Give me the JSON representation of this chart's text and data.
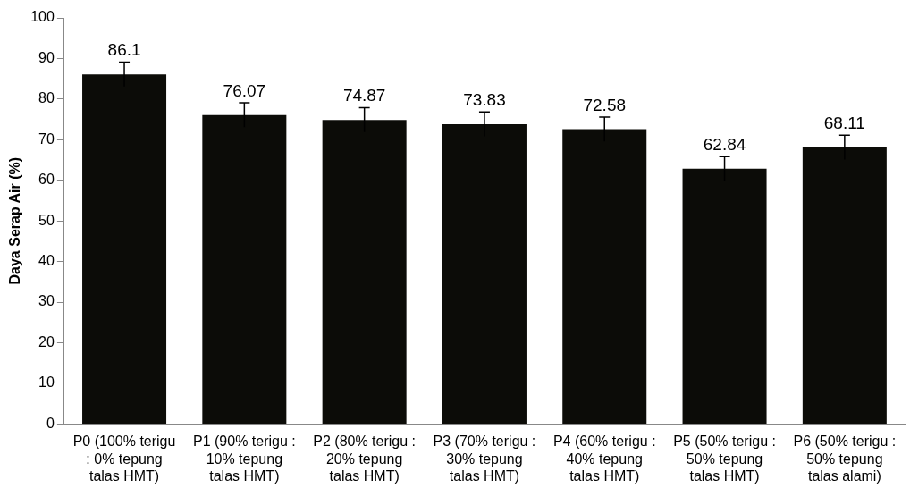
{
  "chart_data": {
    "type": "bar",
    "ylabel": "Daya Serap Air (%)",
    "categories": [
      "P0 (100% terigu : 0% tepung talas HMT)",
      "P1 (90% terigu : 10% tepung talas HMT)",
      "P2 (80% terigu : 20% tepung talas HMT)",
      "P3 (70% terigu : 30% tepung talas HMT)",
      "P4 (60% terigu : 40% tepung talas HMT)",
      "P5 (50% terigu : 50% tepung talas HMT)",
      "P6 (50% terigu : 50% tepung talas alami)"
    ],
    "values": [
      86.1,
      76.07,
      74.87,
      73.83,
      72.58,
      62.84,
      68.11
    ],
    "errors": [
      3,
      3,
      3,
      3,
      3,
      3,
      3
    ],
    "color": "#0c0c08",
    "ylim": [
      0,
      100
    ],
    "yticks": [
      0,
      10,
      20,
      30,
      40,
      50,
      60,
      70,
      80,
      90,
      100
    ],
    "data_labels": true,
    "grid": false,
    "legend": false
  }
}
